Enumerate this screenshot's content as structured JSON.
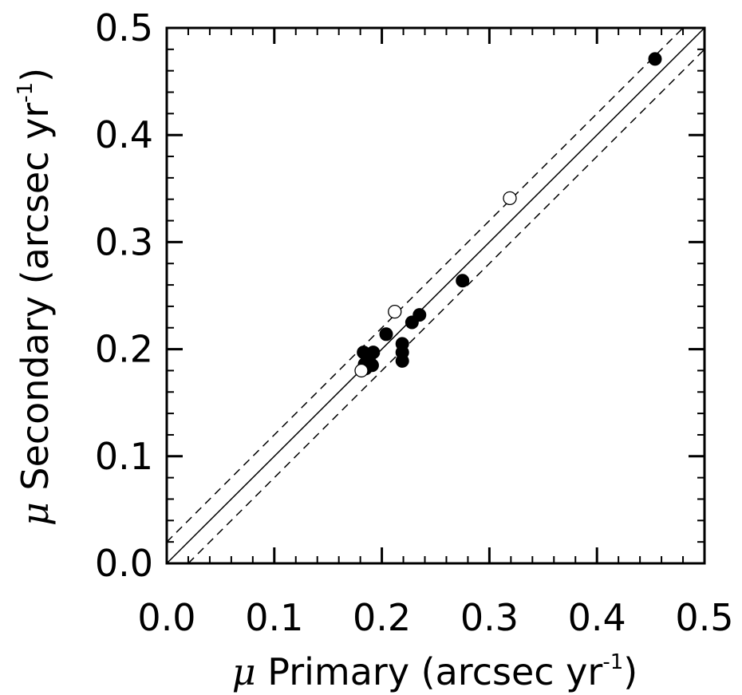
{
  "chart_data": {
    "type": "scatter",
    "xlabel": {
      "symbol": "μ",
      "text": " Primary (arcsec yr",
      "sup": "-1",
      "close": ")"
    },
    "ylabel": {
      "symbol": "μ",
      "text": " Secondary (arcsec yr",
      "sup": "-1",
      "close": ")"
    },
    "xlim": [
      0.0,
      0.5
    ],
    "ylim": [
      0.0,
      0.5
    ],
    "x_ticks": [
      "0.0",
      "0.1",
      "0.2",
      "0.3",
      "0.4",
      "0.5"
    ],
    "y_ticks": [
      "0.0",
      "0.1",
      "0.2",
      "0.3",
      "0.4",
      "0.5"
    ],
    "grid": false,
    "lines": [
      {
        "style": "solid",
        "points": [
          [
            0.0,
            0.0
          ],
          [
            0.5,
            0.5
          ]
        ]
      },
      {
        "style": "dashed",
        "points": [
          [
            0.0,
            0.02
          ],
          [
            0.48,
            0.5
          ]
        ]
      },
      {
        "style": "dashed",
        "points": [
          [
            0.02,
            0.0
          ],
          [
            0.5,
            0.48
          ]
        ]
      }
    ],
    "series": [
      {
        "marker": "filled-circle",
        "color": "#000000",
        "points": [
          [
            0.454,
            0.471
          ],
          [
            0.275,
            0.264
          ],
          [
            0.235,
            0.232
          ],
          [
            0.228,
            0.225
          ],
          [
            0.204,
            0.214
          ],
          [
            0.219,
            0.205
          ],
          [
            0.219,
            0.197
          ],
          [
            0.219,
            0.189
          ],
          [
            0.183,
            0.197
          ],
          [
            0.192,
            0.197
          ],
          [
            0.188,
            0.191
          ],
          [
            0.184,
            0.186
          ],
          [
            0.191,
            0.185
          ],
          [
            0.185,
            0.182
          ]
        ]
      },
      {
        "marker": "open-circle",
        "color": "#000000",
        "points": [
          [
            0.319,
            0.341
          ],
          [
            0.212,
            0.235
          ],
          [
            0.181,
            0.18
          ]
        ]
      }
    ]
  }
}
